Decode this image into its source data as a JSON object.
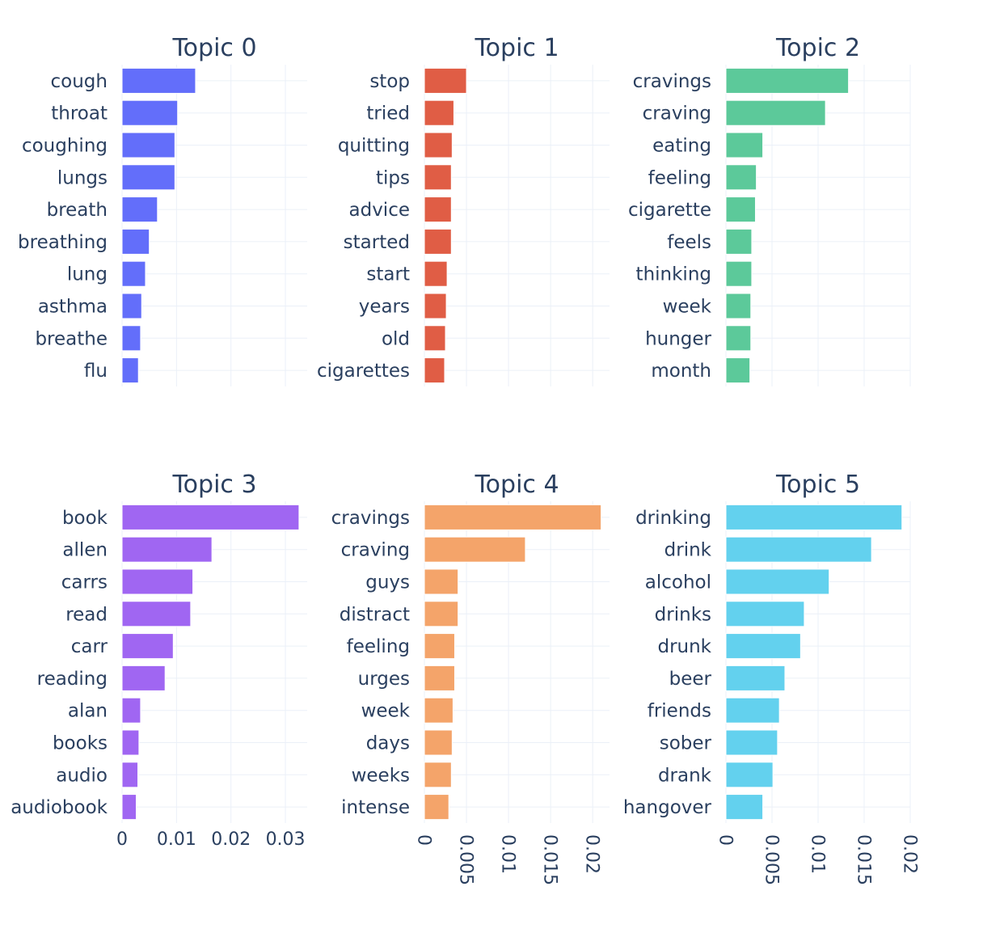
{
  "chart_data": [
    {
      "type": "bar",
      "title": "Topic 0",
      "color": "#636efa",
      "categories": [
        "cough",
        "throat",
        "coughing",
        "lungs",
        "breath",
        "breathing",
        "lung",
        "asthma",
        "breathe",
        "flu"
      ],
      "values": [
        0.0135,
        0.0102,
        0.0097,
        0.0097,
        0.0065,
        0.005,
        0.0043,
        0.0036,
        0.0034,
        0.003
      ],
      "xlim": [
        0,
        0.034
      ],
      "ticks": [
        {
          "v": 0,
          "label": ""
        },
        {
          "v": 0.01,
          "label": ""
        },
        {
          "v": 0.02,
          "label": ""
        },
        {
          "v": 0.03,
          "label": ""
        }
      ]
    },
    {
      "type": "bar",
      "title": "Topic 1",
      "color": "#e05d45",
      "categories": [
        "stop",
        "tried",
        "quitting",
        "tips",
        "advice",
        "started",
        "start",
        "years",
        "old",
        "cigarettes"
      ],
      "values": [
        0.005,
        0.0035,
        0.0033,
        0.0032,
        0.0032,
        0.0032,
        0.0027,
        0.0026,
        0.0025,
        0.0024
      ],
      "xlim": [
        0,
        0.022
      ],
      "ticks": [
        {
          "v": 0,
          "label": ""
        },
        {
          "v": 0.005,
          "label": ""
        },
        {
          "v": 0.01,
          "label": ""
        },
        {
          "v": 0.015,
          "label": ""
        },
        {
          "v": 0.02,
          "label": ""
        }
      ]
    },
    {
      "type": "bar",
      "title": "Topic 2",
      "color": "#5cc99a",
      "categories": [
        "cravings",
        "craving",
        "eating",
        "feeling",
        "cigarette",
        "feels",
        "thinking",
        "week",
        "hunger",
        "month"
      ],
      "values": [
        0.0133,
        0.0108,
        0.004,
        0.0033,
        0.0032,
        0.0028,
        0.0028,
        0.0027,
        0.0027,
        0.0026
      ],
      "xlim": [
        0,
        0.02
      ],
      "ticks": [
        {
          "v": 0,
          "label": ""
        },
        {
          "v": 0.005,
          "label": ""
        },
        {
          "v": 0.01,
          "label": ""
        },
        {
          "v": 0.015,
          "label": ""
        },
        {
          "v": 0.02,
          "label": ""
        }
      ]
    },
    {
      "type": "bar",
      "title": "Topic 3",
      "color": "#a066f2",
      "categories": [
        "book",
        "allen",
        "carrs",
        "read",
        "carr",
        "reading",
        "alan",
        "books",
        "audio",
        "audiobook"
      ],
      "values": [
        0.0325,
        0.0165,
        0.013,
        0.0126,
        0.0094,
        0.0079,
        0.0034,
        0.0031,
        0.0029,
        0.0026
      ],
      "xlim": [
        0,
        0.034
      ],
      "ticks": [
        {
          "v": 0,
          "label": "0"
        },
        {
          "v": 0.01,
          "label": "0.01"
        },
        {
          "v": 0.02,
          "label": "0.02"
        },
        {
          "v": 0.03,
          "label": "0.03"
        }
      ],
      "tick_rotate": false
    },
    {
      "type": "bar",
      "title": "Topic 4",
      "color": "#f4a46a",
      "categories": [
        "cravings",
        "craving",
        "guys",
        "distract",
        "feeling",
        "urges",
        "week",
        "days",
        "weeks",
        "intense"
      ],
      "values": [
        0.021,
        0.012,
        0.004,
        0.004,
        0.0036,
        0.0036,
        0.0034,
        0.0033,
        0.0032,
        0.0029
      ],
      "xlim": [
        0,
        0.022
      ],
      "ticks": [
        {
          "v": 0,
          "label": "0"
        },
        {
          "v": 0.005,
          "label": "0.005"
        },
        {
          "v": 0.01,
          "label": "0.01"
        },
        {
          "v": 0.015,
          "label": "0.015"
        },
        {
          "v": 0.02,
          "label": "0.02"
        }
      ],
      "tick_rotate": true
    },
    {
      "type": "bar",
      "title": "Topic 5",
      "color": "#63d1ee",
      "categories": [
        "drinking",
        "drink",
        "alcohol",
        "drinks",
        "drunk",
        "beer",
        "friends",
        "sober",
        "drank",
        "hangover"
      ],
      "values": [
        0.0191,
        0.0158,
        0.0112,
        0.0085,
        0.0081,
        0.0064,
        0.0058,
        0.0056,
        0.0051,
        0.004
      ],
      "xlim": [
        0,
        0.02
      ],
      "ticks": [
        {
          "v": 0,
          "label": "0"
        },
        {
          "v": 0.005,
          "label": "0.005"
        },
        {
          "v": 0.01,
          "label": "0.01"
        },
        {
          "v": 0.015,
          "label": "0.015"
        },
        {
          "v": 0.02,
          "label": "0.02"
        }
      ],
      "tick_rotate": true
    }
  ]
}
